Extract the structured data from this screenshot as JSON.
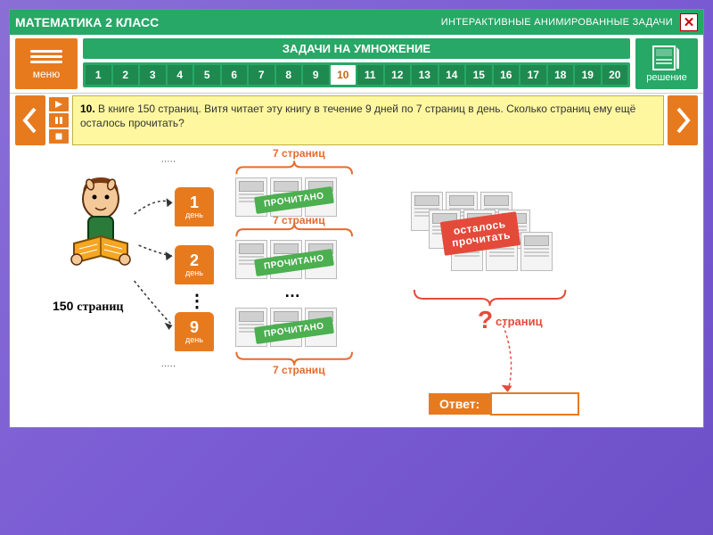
{
  "header": {
    "title": "МАТЕМАТИКА 2 КЛАСС",
    "subtitle": "ИНТЕРАКТИВНЫЕ АНИМИРОВАННЫЕ ЗАДАЧИ"
  },
  "nav": {
    "menu_label": "меню",
    "section_title": "ЗАДАЧИ НА УМНОЖЕНИЕ",
    "solution_label": "решение",
    "pages": [
      "1",
      "2",
      "3",
      "4",
      "5",
      "6",
      "7",
      "8",
      "9",
      "10",
      "11",
      "12",
      "13",
      "14",
      "15",
      "16",
      "17",
      "18",
      "19",
      "20"
    ],
    "active_page": "10"
  },
  "problem": {
    "number": "10.",
    "text": "В книге 150 страниц. Витя читает эту книгу в течение 9 дней по 7 страниц в день. Сколько страниц ему ещё осталось прочитать?"
  },
  "diagram": {
    "total_pages_label": "150 страниц",
    "per_day_label": "7 страниц",
    "days": [
      {
        "num": "1",
        "label": "день"
      },
      {
        "num": "2",
        "label": "день"
      },
      {
        "num": "9",
        "label": "день"
      }
    ],
    "read_stamp": "ПРОЧИТАНО",
    "remaining_stamp_line1": "осталось",
    "remaining_stamp_line2": "прочитать",
    "question_text": "страниц",
    "answer_label": "Ответ:",
    "colors": {
      "accent_orange": "#e87a1e",
      "accent_green": "#27a866",
      "stamp_green": "#4caf50",
      "stamp_red": "#e44a3a",
      "problem_bg": "#fef7a0"
    }
  }
}
